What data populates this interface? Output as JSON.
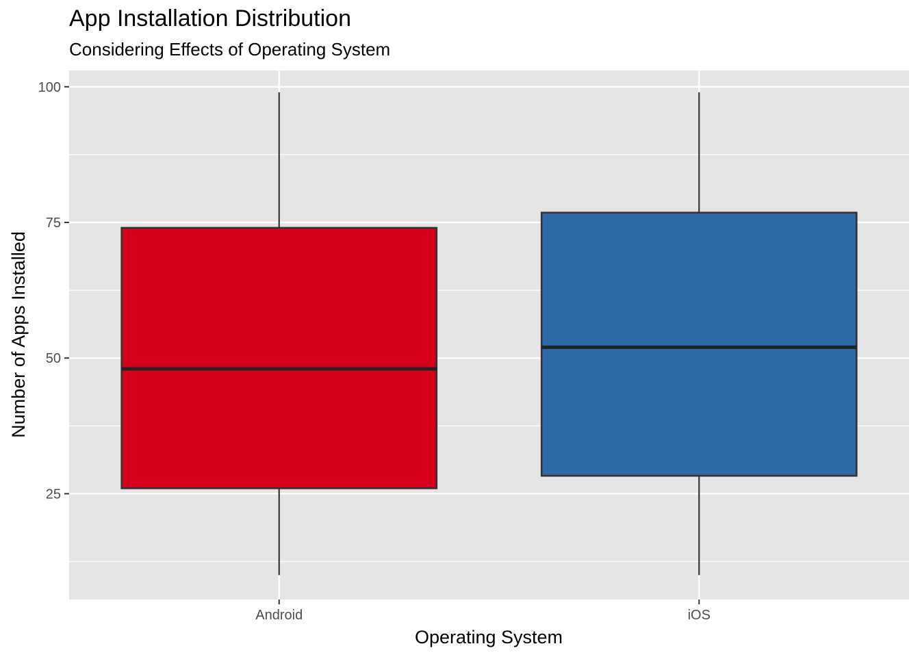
{
  "chart_data": {
    "type": "box",
    "title": "App Installation Distribution",
    "subtitle": "Considering Effects of Operating System",
    "xlabel": "Operating System",
    "ylabel": "Number of Apps Installed",
    "ylim": [
      5.5,
      103
    ],
    "y_ticks": [
      25,
      50,
      75,
      100
    ],
    "y_minor_ticks": [
      12.5,
      37.5,
      62.5,
      87.5
    ],
    "grid": true,
    "legend": "none",
    "panel_background": "#E5E5E5",
    "categories": [
      "Android",
      "iOS"
    ],
    "boxes": [
      {
        "category": "Android",
        "min": 10,
        "q1": 26,
        "median": 48,
        "q3": 74,
        "max": 99,
        "fill": "#D7001A"
      },
      {
        "category": "iOS",
        "min": 10,
        "q1": 28.3,
        "median": 52,
        "q3": 76.8,
        "max": 99,
        "fill": "#2D69A6"
      }
    ]
  }
}
